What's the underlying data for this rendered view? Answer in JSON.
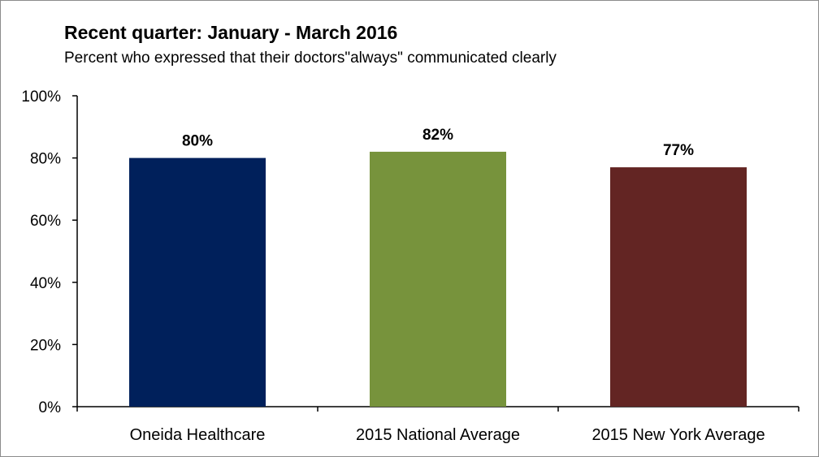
{
  "chart_data": {
    "type": "bar",
    "title": "Recent quarter: January - March 2016",
    "subtitle": "Percent who expressed that their doctors\"always\" communicated clearly",
    "categories": [
      "Oneida Healthcare",
      "2015 National Average",
      "2015 New York Average"
    ],
    "values": [
      80,
      82,
      77
    ],
    "data_labels": [
      "80%",
      "82%",
      "77%"
    ],
    "colors": [
      "#00205b",
      "#77933c",
      "#632523"
    ],
    "ylim": [
      0,
      100
    ],
    "yticks": [
      0,
      20,
      40,
      60,
      80,
      100
    ],
    "ytick_labels": [
      "0%",
      "20%",
      "40%",
      "60%",
      "80%",
      "100%"
    ],
    "grid": false,
    "legend": "none"
  }
}
